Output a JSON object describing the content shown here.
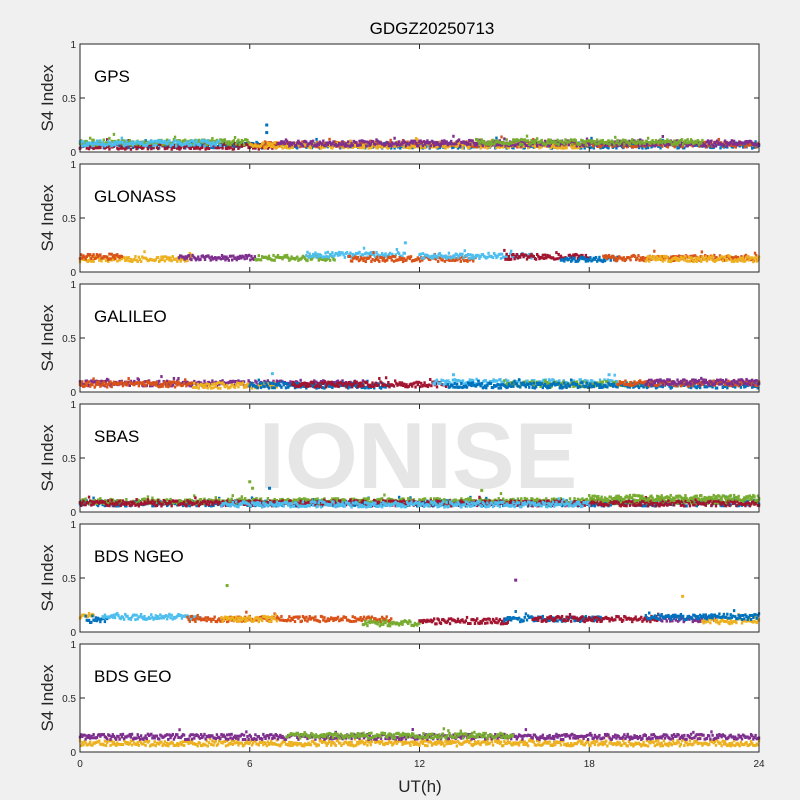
{
  "title": "GDGZ20250713",
  "watermark": "IONISE",
  "colors": {
    "blue": "#0072BD",
    "orange": "#D95319",
    "yellow": "#EDB120",
    "purple": "#7E2F8E",
    "green": "#77AC30",
    "lightblue": "#4DBEEE",
    "darkred": "#A2142F"
  },
  "chart_data": {
    "type": "scatter",
    "xlabel": "UT(h)",
    "ylabel": "S4 Index",
    "xlim": [
      0,
      24
    ],
    "ylim": [
      0,
      1
    ],
    "xticks": [
      "0",
      "6",
      "12",
      "18",
      "24"
    ],
    "yticks": [
      "0",
      "0.5",
      "1"
    ],
    "grid": false,
    "panels": [
      {
        "label": "GPS",
        "series": [
          {
            "color": "blue",
            "x": [
              0,
              24
            ],
            "level": 0.06
          },
          {
            "color": "darkred",
            "x": [
              0,
              7
            ],
            "level": 0.05
          },
          {
            "color": "orange",
            "x": [
              6.5,
              24
            ],
            "level": 0.07
          },
          {
            "color": "yellow",
            "x": [
              6,
              18
            ],
            "level": 0.06
          },
          {
            "color": "purple",
            "x": [
              7,
              24
            ],
            "level": 0.08
          },
          {
            "color": "green",
            "x": [
              0,
              6
            ],
            "level": 0.09
          },
          {
            "color": "lightblue",
            "x": [
              0,
              5
            ],
            "level": 0.08
          },
          {
            "color": "green",
            "x": [
              14,
              22
            ],
            "level": 0.09
          }
        ],
        "spikes": [
          {
            "color": "blue",
            "x": 6.6,
            "y": 0.25
          },
          {
            "color": "blue",
            "x": 6.6,
            "y": 0.18
          }
        ]
      },
      {
        "label": "GLONASS",
        "series": [
          {
            "color": "yellow",
            "x": [
              0,
              4
            ],
            "level": 0.12
          },
          {
            "color": "orange",
            "x": [
              0,
              1.5
            ],
            "level": 0.14
          },
          {
            "color": "purple",
            "x": [
              3.5,
              6.2
            ],
            "level": 0.13
          },
          {
            "color": "green",
            "x": [
              6.2,
              9
            ],
            "level": 0.13
          },
          {
            "color": "lightblue",
            "x": [
              8,
              11.5
            ],
            "level": 0.16
          },
          {
            "color": "orange",
            "x": [
              9.5,
              14
            ],
            "level": 0.12
          },
          {
            "color": "lightblue",
            "x": [
              12,
              16
            ],
            "level": 0.15
          },
          {
            "color": "darkred",
            "x": [
              15,
              18
            ],
            "level": 0.14
          },
          {
            "color": "blue",
            "x": [
              17,
              19
            ],
            "level": 0.12
          },
          {
            "color": "orange",
            "x": [
              18.5,
              24
            ],
            "level": 0.13
          },
          {
            "color": "yellow",
            "x": [
              20,
              24
            ],
            "level": 0.12
          }
        ],
        "spikes": [
          {
            "color": "lightblue",
            "x": 11.5,
            "y": 0.27
          }
        ]
      },
      {
        "label": "GALILEO",
        "series": [
          {
            "color": "purple",
            "x": [
              0,
              10
            ],
            "level": 0.08
          },
          {
            "color": "orange",
            "x": [
              0,
              4
            ],
            "level": 0.07
          },
          {
            "color": "yellow",
            "x": [
              4,
              7
            ],
            "level": 0.06
          },
          {
            "color": "blue",
            "x": [
              6,
              11
            ],
            "level": 0.06
          },
          {
            "color": "darkred",
            "x": [
              7.5,
              13
            ],
            "level": 0.07
          },
          {
            "color": "lightblue",
            "x": [
              12.5,
              19
            ],
            "level": 0.09
          },
          {
            "color": "green",
            "x": [
              15,
              20
            ],
            "level": 0.07
          },
          {
            "color": "blue",
            "x": [
              13,
              24
            ],
            "level": 0.06
          },
          {
            "color": "orange",
            "x": [
              19,
              24
            ],
            "level": 0.08
          },
          {
            "color": "purple",
            "x": [
              20,
              24
            ],
            "level": 0.09
          }
        ],
        "spikes": [
          {
            "color": "lightblue",
            "x": 6.8,
            "y": 0.17
          },
          {
            "color": "lightblue",
            "x": 18.7,
            "y": 0.16
          },
          {
            "color": "lightblue",
            "x": 13.2,
            "y": 0.16
          }
        ]
      },
      {
        "label": "SBAS",
        "series": [
          {
            "color": "blue",
            "x": [
              0,
              24
            ],
            "level": 0.08
          },
          {
            "color": "green",
            "x": [
              0,
              24
            ],
            "level": 0.1
          },
          {
            "color": "darkred",
            "x": [
              0,
              24
            ],
            "level": 0.08
          },
          {
            "color": "lightblue",
            "x": [
              5,
              18
            ],
            "level": 0.07
          },
          {
            "color": "green",
            "x": [
              18,
              24
            ],
            "level": 0.13
          }
        ],
        "spikes": [
          {
            "color": "green",
            "x": 6,
            "y": 0.28
          },
          {
            "color": "green",
            "x": 6.1,
            "y": 0.22
          },
          {
            "color": "blue",
            "x": 6.7,
            "y": 0.22
          },
          {
            "color": "green",
            "x": 14.2,
            "y": 0.2
          }
        ]
      },
      {
        "label": "BDS NGEO",
        "series": [
          {
            "color": "yellow",
            "x": [
              0,
              0.5
            ],
            "level": 0.15
          },
          {
            "color": "blue",
            "x": [
              0.2,
              1
            ],
            "level": 0.11
          },
          {
            "color": "lightblue",
            "x": [
              0.8,
              4.3
            ],
            "level": 0.14
          },
          {
            "color": "orange",
            "x": [
              3.8,
              11
            ],
            "level": 0.12
          },
          {
            "color": "yellow",
            "x": [
              5,
              7
            ],
            "level": 0.12
          },
          {
            "color": "green",
            "x": [
              10,
              12
            ],
            "level": 0.08
          },
          {
            "color": "darkred",
            "x": [
              12,
              15.2
            ],
            "level": 0.1
          },
          {
            "color": "blue",
            "x": [
              15,
              18.5
            ],
            "level": 0.12
          },
          {
            "color": "darkred",
            "x": [
              16,
              20.5
            ],
            "level": 0.12
          },
          {
            "color": "purple",
            "x": [
              20.5,
              22.5
            ],
            "level": 0.12
          },
          {
            "color": "yellow",
            "x": [
              22,
              24
            ],
            "level": 0.1
          },
          {
            "color": "blue",
            "x": [
              20,
              24
            ],
            "level": 0.14
          }
        ],
        "spikes": [
          {
            "color": "green",
            "x": 5.2,
            "y": 0.43
          },
          {
            "color": "purple",
            "x": 15.4,
            "y": 0.48
          },
          {
            "color": "yellow",
            "x": 21.3,
            "y": 0.33
          }
        ]
      },
      {
        "label": "BDS GEO",
        "series": [
          {
            "color": "yellow",
            "x": [
              0,
              24
            ],
            "level": 0.08
          },
          {
            "color": "purple",
            "x": [
              0,
              24
            ],
            "level": 0.14
          },
          {
            "color": "green",
            "x": [
              7.3,
              15.3
            ],
            "level": 0.15
          }
        ],
        "spikes": []
      }
    ]
  }
}
